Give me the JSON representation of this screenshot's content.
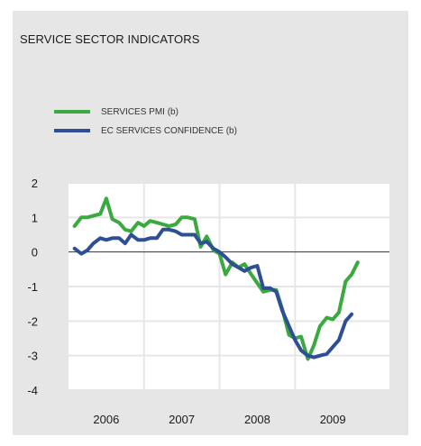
{
  "chart_data": {
    "type": "line",
    "title": "SERVICE SECTOR INDICATORS",
    "xlabel": "",
    "ylabel": "",
    "ylim": [
      -4,
      2
    ],
    "yticks": [
      2,
      1,
      0,
      -1,
      -2,
      -3,
      -4
    ],
    "xlim": [
      2005.5,
      2009.75
    ],
    "xticks": [
      {
        "label": "2006",
        "value": 2006.0
      },
      {
        "label": "2007",
        "value": 2007.0
      },
      {
        "label": "2008",
        "value": 2008.0
      },
      {
        "label": "2009",
        "value": 2009.0
      }
    ],
    "grid": true,
    "legend_position": "top-left",
    "series": [
      {
        "name": "SERVICES PMI (b)",
        "color": "#3aa940",
        "x": [
          2005.58,
          2005.67,
          2005.75,
          2005.83,
          2005.92,
          2006.0,
          2006.08,
          2006.17,
          2006.25,
          2006.33,
          2006.42,
          2006.5,
          2006.58,
          2006.67,
          2006.75,
          2006.83,
          2006.92,
          2007.0,
          2007.08,
          2007.17,
          2007.25,
          2007.33,
          2007.42,
          2007.5,
          2007.58,
          2007.67,
          2007.75,
          2007.83,
          2007.92,
          2008.0,
          2008.08,
          2008.17,
          2008.25,
          2008.33,
          2008.42,
          2008.5,
          2008.58,
          2008.67,
          2008.75,
          2008.83,
          2008.92,
          2009.0,
          2009.08,
          2009.17,
          2009.25,
          2009.33
        ],
        "values": [
          0.75,
          1.0,
          1.0,
          1.05,
          1.1,
          1.55,
          0.95,
          0.85,
          0.65,
          0.6,
          0.85,
          0.75,
          0.9,
          0.85,
          0.8,
          0.75,
          0.8,
          1.0,
          1.0,
          0.95,
          0.15,
          0.45,
          0.05,
          -0.05,
          -0.65,
          -0.3,
          -0.45,
          -0.35,
          -0.65,
          -0.9,
          -1.15,
          -1.1,
          -1.1,
          -1.65,
          -2.4,
          -2.5,
          -2.45,
          -3.1,
          -2.7,
          -2.15,
          -1.9,
          -1.95,
          -1.75,
          -0.85,
          -0.65,
          -0.3
        ]
      },
      {
        "name": "EC SERVICES CONFIDENCE (b)",
        "color": "#2e4f96",
        "x": [
          2005.58,
          2005.67,
          2005.75,
          2005.83,
          2005.92,
          2006.0,
          2006.08,
          2006.17,
          2006.25,
          2006.33,
          2006.42,
          2006.5,
          2006.58,
          2006.67,
          2006.75,
          2006.83,
          2006.92,
          2007.0,
          2007.08,
          2007.17,
          2007.25,
          2007.33,
          2007.42,
          2007.5,
          2007.58,
          2007.67,
          2007.75,
          2007.83,
          2007.92,
          2008.0,
          2008.08,
          2008.17,
          2008.25,
          2008.33,
          2008.42,
          2008.5,
          2008.58,
          2008.67,
          2008.75,
          2008.83,
          2008.92,
          2009.0,
          2009.08,
          2009.17,
          2009.25
        ],
        "values": [
          0.1,
          -0.05,
          0.05,
          0.25,
          0.4,
          0.35,
          0.4,
          0.4,
          0.25,
          0.5,
          0.35,
          0.35,
          0.4,
          0.4,
          0.65,
          0.65,
          0.6,
          0.5,
          0.5,
          0.5,
          0.25,
          0.3,
          0.1,
          0.0,
          -0.15,
          -0.35,
          -0.45,
          -0.55,
          -0.45,
          -0.4,
          -1.05,
          -1.05,
          -1.15,
          -1.7,
          -2.15,
          -2.55,
          -2.85,
          -3.0,
          -3.05,
          -3.0,
          -2.95,
          -2.75,
          -2.55,
          -2.0,
          -1.8
        ]
      }
    ]
  }
}
